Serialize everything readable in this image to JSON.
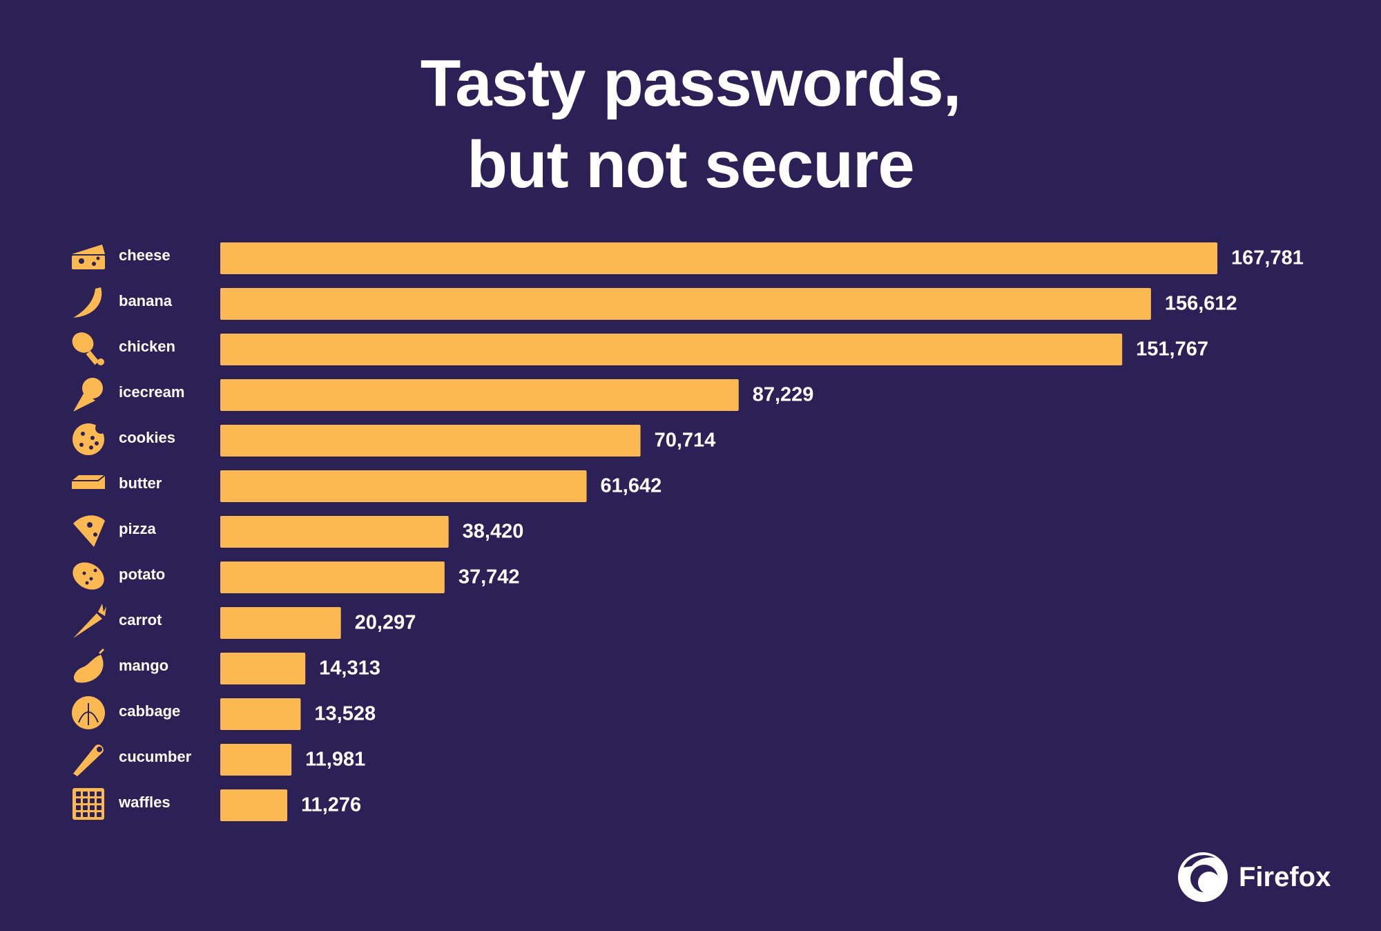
{
  "title": {
    "line1": "Tasty passwords,",
    "line2": "but not secure"
  },
  "colors": {
    "background": "#2c2157",
    "bar": "#fdb951",
    "text": "#ffffff"
  },
  "chart_data": {
    "type": "bar",
    "orientation": "horizontal",
    "title": "Tasty passwords, but not secure",
    "categories": [
      "cheese",
      "banana",
      "chicken",
      "icecream",
      "cookies",
      "butter",
      "pizza",
      "potato",
      "carrot",
      "mango",
      "cabbage",
      "cucumber",
      "waffles"
    ],
    "values": [
      167781,
      156612,
      151767,
      87229,
      70714,
      61642,
      38420,
      37742,
      20297,
      14313,
      13528,
      11981,
      11276
    ],
    "value_labels": [
      "167,781",
      "156,612",
      "151,767",
      "87,229",
      "70,714",
      "61,642",
      "38,420",
      "37,742",
      "20,297",
      "14,313",
      "13,528",
      "11,981",
      "11,276"
    ],
    "icons": [
      "cheese-icon",
      "banana-icon",
      "chicken-leg-icon",
      "icecream-cone-icon",
      "cookie-icon",
      "butter-icon",
      "pizza-slice-icon",
      "potato-icon",
      "carrot-icon",
      "mango-icon",
      "cabbage-icon",
      "cucumber-icon",
      "waffle-icon"
    ],
    "xlim": [
      0,
      167781
    ],
    "grid": false,
    "legend": "none"
  },
  "brand": {
    "name": "Firefox",
    "logo_icon": "firefox-logo-icon"
  }
}
